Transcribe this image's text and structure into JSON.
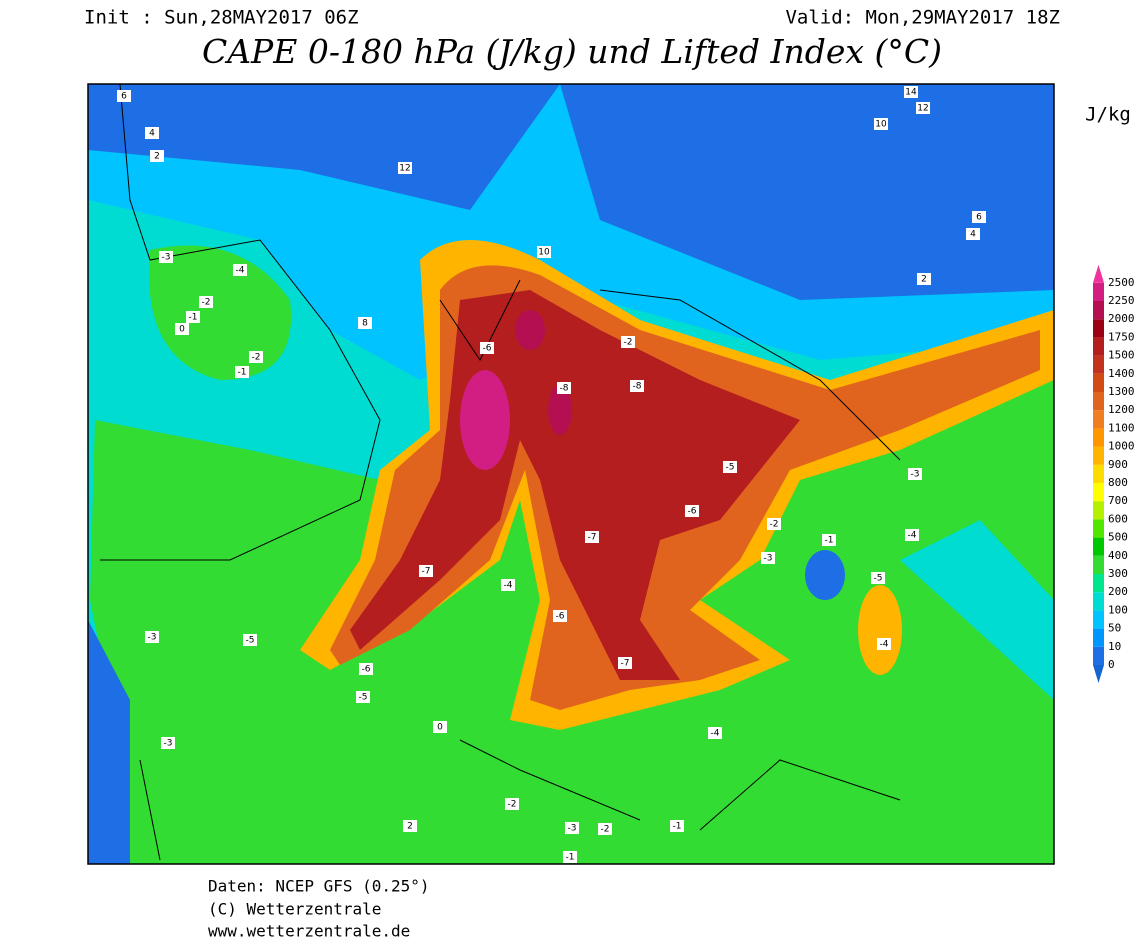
{
  "header": {
    "init": "Init : Sun,28MAY2017 06Z",
    "valid": "Valid: Mon,29MAY2017 18Z",
    "title": "CAPE 0-180 hPa (J/kg) und Lifted Index (°C)"
  },
  "colorbar": {
    "unit": "J/kg",
    "levels": [
      0,
      10,
      50,
      100,
      200,
      300,
      400,
      500,
      600,
      700,
      800,
      900,
      1000,
      1100,
      1200,
      1300,
      1400,
      1500,
      1750,
      2000,
      2250,
      2500
    ],
    "colors": [
      "#1e6ee6",
      "#0096ff",
      "#00c3ff",
      "#00dcd2",
      "#00e68c",
      "#32dc32",
      "#00c800",
      "#50e600",
      "#b4f000",
      "#ffff00",
      "#ffdc00",
      "#ffb400",
      "#ff9600",
      "#f07d1e",
      "#e1641e",
      "#d24b14",
      "#c3321e",
      "#b41e1e",
      "#9b0014",
      "#b40f50",
      "#d21e82"
    ],
    "below_color": "#1464d2",
    "above_color": "#f0329b"
  },
  "li_labels": [
    "6",
    "4",
    "2",
    "-3",
    "-4",
    "-2",
    "-1",
    "0",
    "12",
    "8",
    "10",
    "-2",
    "-1",
    "-6",
    "-8",
    "-7",
    "-6",
    "-5",
    "-3",
    "-4",
    "-5",
    "-6",
    "-7",
    "-3",
    "-2",
    "-4",
    "-5",
    "-4",
    "-7",
    "-6",
    "-8",
    "-2",
    "-3",
    "-4",
    "-2",
    "-1",
    "0",
    "2",
    "-3",
    "-2",
    "-1",
    "14",
    "12",
    "10",
    "6",
    "4",
    "2",
    "-5",
    "-1",
    "-3"
  ],
  "footer": [
    "Daten: NCEP GFS (0.25°)",
    "(C) Wetterzentrale",
    "www.wetterzentrale.de"
  ]
}
